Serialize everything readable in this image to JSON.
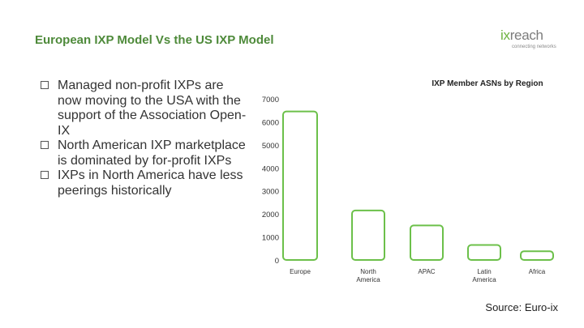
{
  "slide": {
    "title": "European IXP Model Vs the US IXP Model",
    "logo": {
      "prefix": "ix",
      "suffix": "reach",
      "tagline": "connecting networks"
    },
    "bullets": [
      "Managed non-profit IXPs are now moving to the USA with the support of the Association Open-IX",
      "North American IXP marketplace is dominated by for-profit IXPs",
      "IXPs in North America have less peerings historically"
    ],
    "source": "Source: Euro-ix"
  },
  "colors": {
    "title": "#4e8a3a",
    "bar_stroke": "#6cc04a",
    "bar_fill": "#ffffff",
    "text": "#333333"
  },
  "chart_data": {
    "type": "bar",
    "title": "IXP Member ASNs by Region",
    "categories": [
      "Europe",
      "North America",
      "APAC",
      "Latin America",
      "Africa"
    ],
    "category_labels": [
      [
        "Europe"
      ],
      [
        "North",
        "America"
      ],
      [
        "APAC"
      ],
      [
        "Latin",
        "America"
      ],
      [
        "Africa"
      ]
    ],
    "values": [
      6450,
      2150,
      1500,
      650,
      380
    ],
    "yticks": [
      0,
      1000,
      2000,
      3000,
      4000,
      5000,
      6000,
      7000
    ],
    "ylim": [
      0,
      7000
    ],
    "xlabel": "",
    "ylabel": "",
    "grid": false,
    "legend": "none"
  }
}
